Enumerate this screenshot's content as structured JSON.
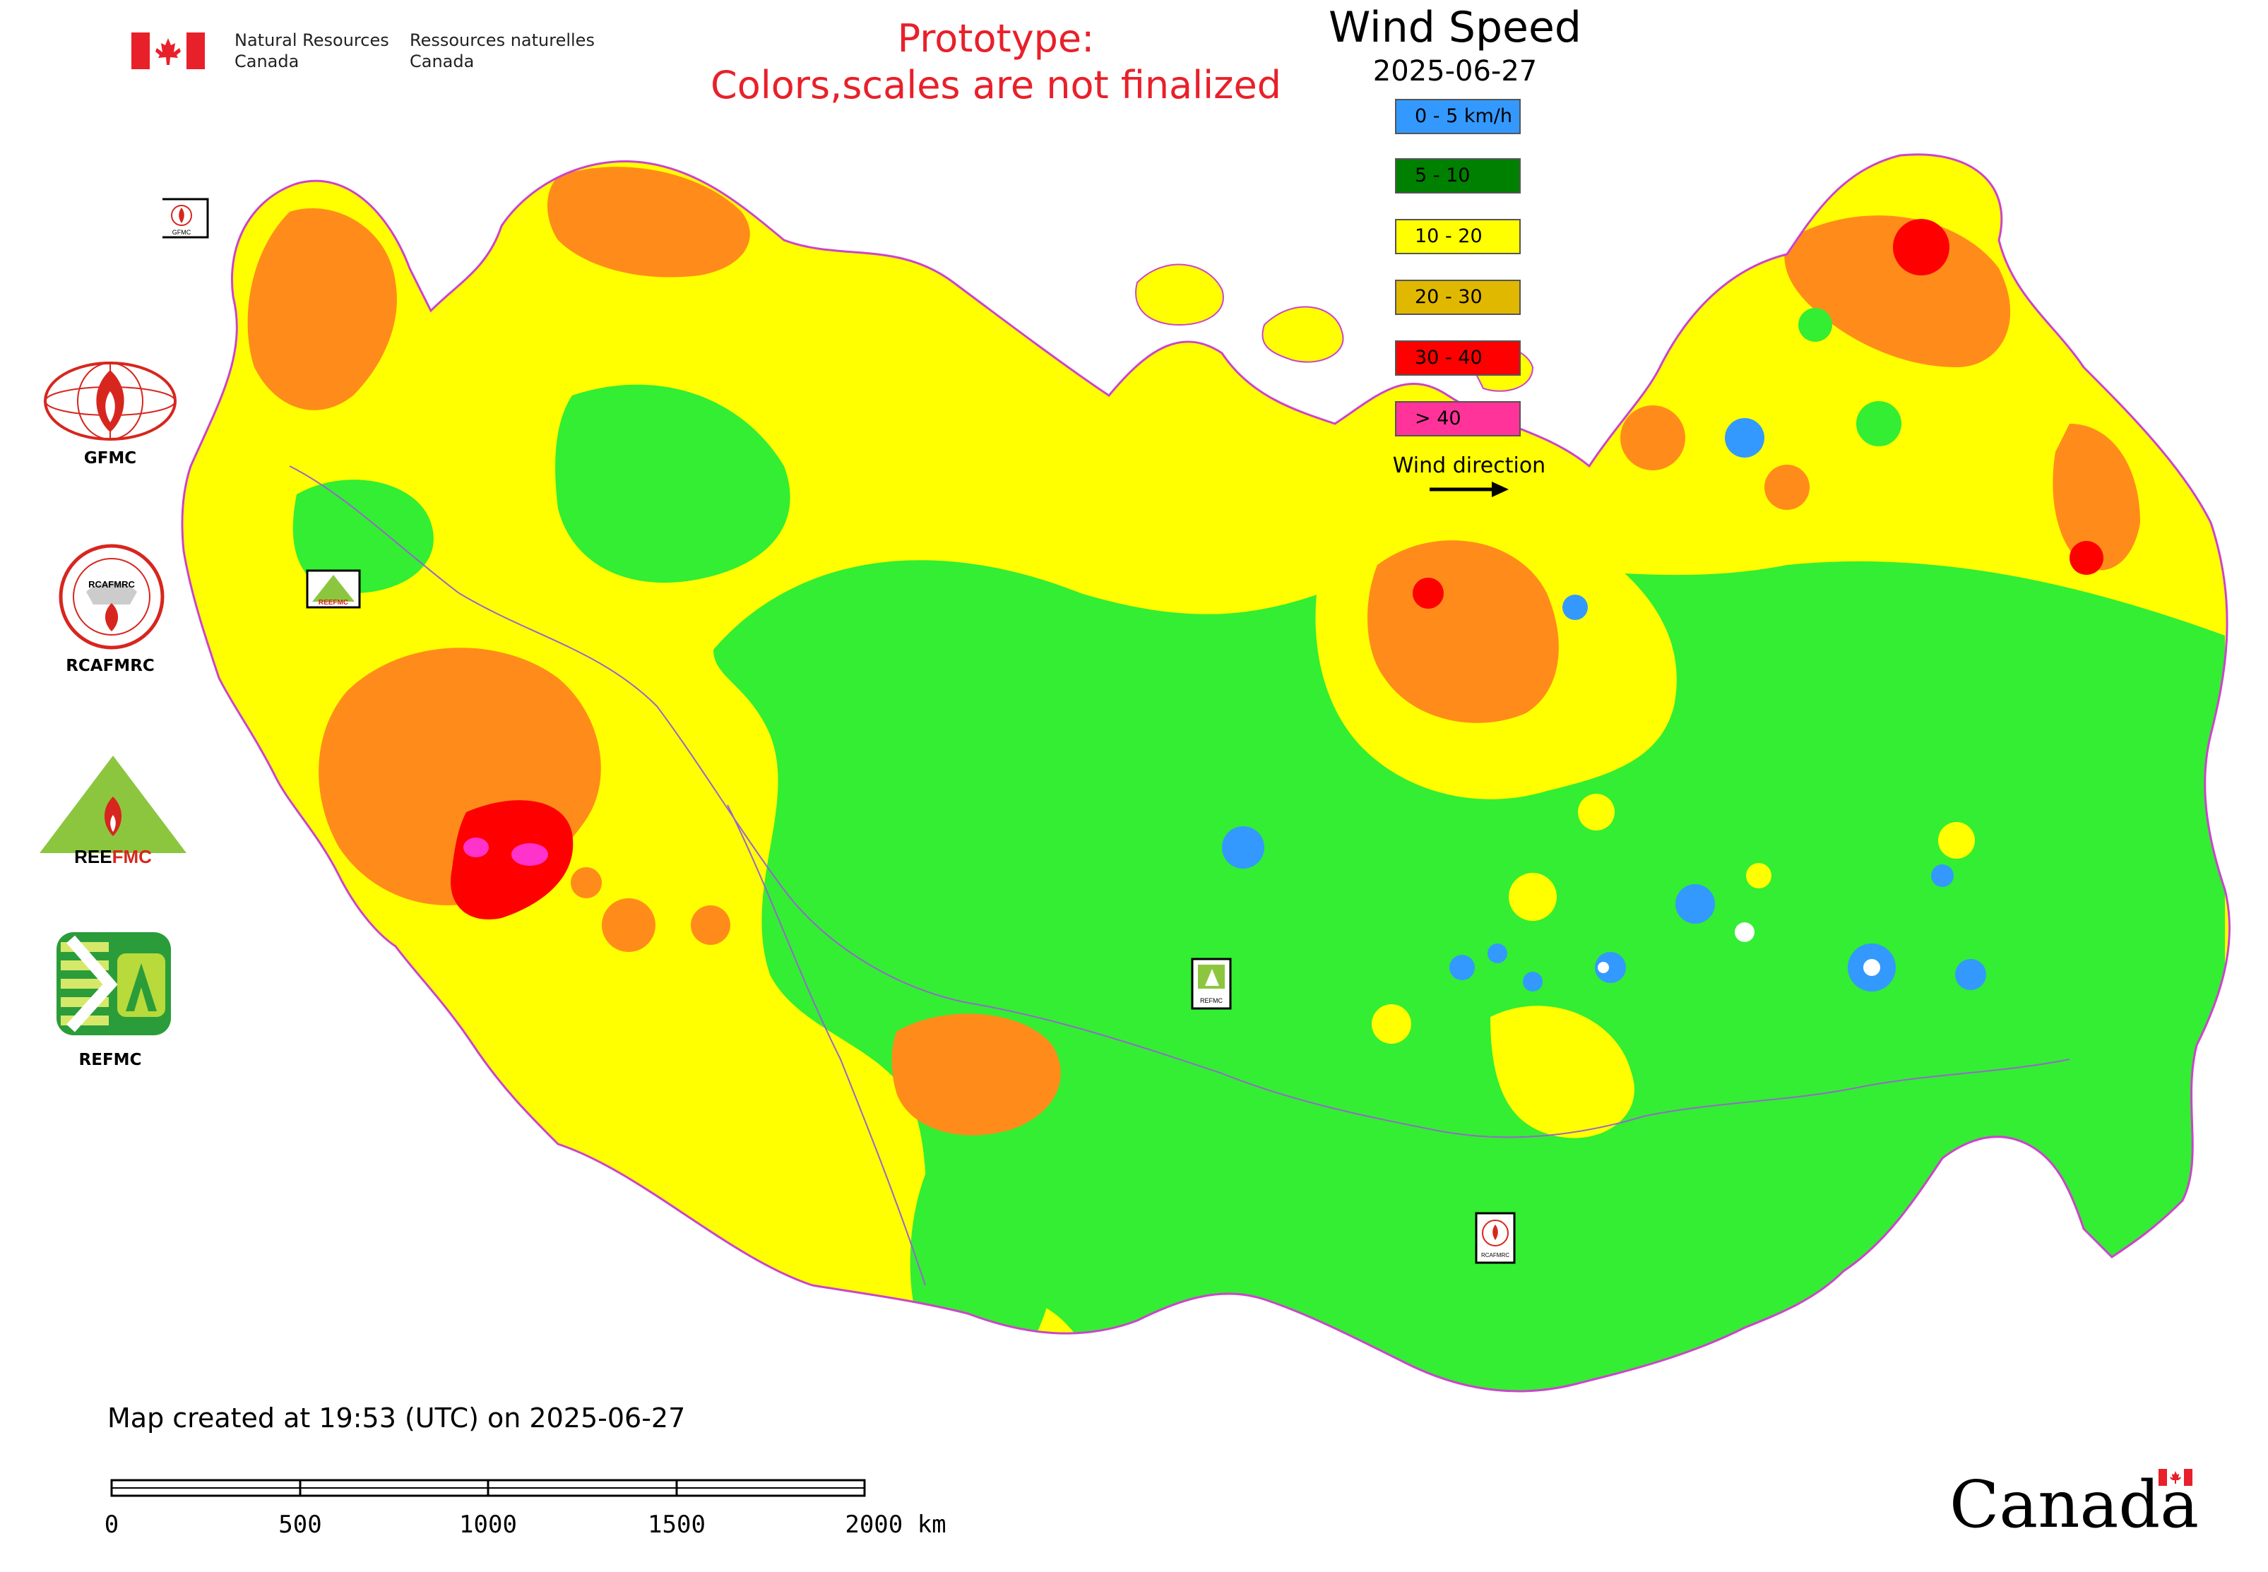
{
  "header": {
    "agency_en_line1": "Natural Resources",
    "agency_en_line2": "Canada",
    "agency_fr_line1": "Ressources naturelles",
    "agency_fr_line2": "Canada",
    "prototype_line1": "Prototype:",
    "prototype_line2": "Colors,scales are not finalized"
  },
  "legend": {
    "title": "Wind Speed",
    "date": "2025-06-27",
    "items": [
      {
        "label": "0 - 5 km/h",
        "color": "#3399ff"
      },
      {
        "label": "5 - 10",
        "color": "#008000"
      },
      {
        "label": "10 - 20",
        "color": "#ffff00"
      },
      {
        "label": "20 - 30",
        "color": "#e0b800"
      },
      {
        "label": "30 - 40",
        "color": "#ff0000"
      },
      {
        "label": "> 40",
        "color": "#ff3399"
      }
    ],
    "wind_direction_label": "Wind direction"
  },
  "logos": [
    {
      "label": "GFMC",
      "icon": "gfmc-logo"
    },
    {
      "label": "RCAFMRC",
      "icon": "rcafmrc-logo"
    },
    {
      "label": "REEFMC",
      "icon": "reefmc-logo"
    },
    {
      "label": "REFMC",
      "icon": "refmc-logo"
    }
  ],
  "map_markers": [
    "GFMC",
    "REEFMC",
    "REFMC",
    "RCAFMRC"
  ],
  "colors": {
    "calm": "#3399ff",
    "light": "#33ee33",
    "moderate": "#ffff00",
    "fresh": "#ff8c1a",
    "strong": "#ff0000",
    "gale": "#ff33cc",
    "border": "#cc44cc",
    "water": "#ffffff"
  },
  "footer": {
    "created": "Map created at 19:53 (UTC) on 2025-06-27",
    "scale_ticks": [
      "0",
      "500",
      "1000",
      "1500",
      "2000 km"
    ],
    "wordmark": "Canada"
  }
}
